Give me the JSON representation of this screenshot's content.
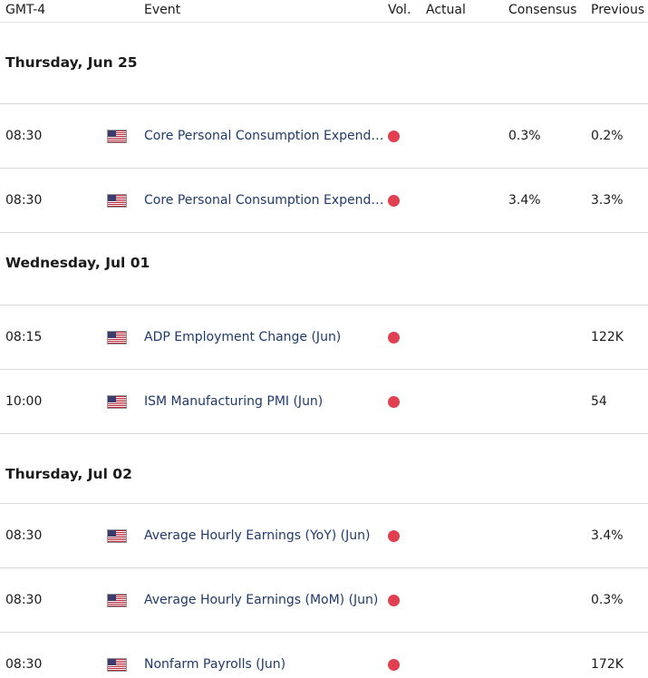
{
  "header": {
    "timezone": "GMT-4",
    "event": "Event",
    "vol": "Vol.",
    "actual": "Actual",
    "consensus": "Consensus",
    "previous": "Previous"
  },
  "colors": {
    "event_text": "#1f3a6b",
    "volatility_high": "#e0404f",
    "divider": "#d9d9d9"
  },
  "days": [
    {
      "label": "Thursday, Jun 25",
      "events": [
        {
          "time": "08:30",
          "flag": "us-flag-icon",
          "name": "Core Personal Consumption Expenditures",
          "volatility": "high",
          "actual": "",
          "consensus": "0.3%",
          "previous": "0.2%"
        },
        {
          "time": "08:30",
          "flag": "us-flag-icon",
          "name": "Core Personal Consumption Expenditures",
          "volatility": "high",
          "actual": "",
          "consensus": "3.4%",
          "previous": "3.3%"
        }
      ]
    },
    {
      "label": "Wednesday, Jul 01",
      "events": [
        {
          "time": "08:15",
          "flag": "us-flag-icon",
          "name": "ADP Employment Change (Jun)",
          "volatility": "high",
          "actual": "",
          "consensus": "",
          "previous": "122K"
        },
        {
          "time": "10:00",
          "flag": "us-flag-icon",
          "name": "ISM Manufacturing PMI (Jun)",
          "volatility": "high",
          "actual": "",
          "consensus": "",
          "previous": "54"
        }
      ]
    },
    {
      "label": "Thursday, Jul 02",
      "events": [
        {
          "time": "08:30",
          "flag": "us-flag-icon",
          "name": "Average Hourly Earnings (YoY) (Jun)",
          "volatility": "high",
          "actual": "",
          "consensus": "",
          "previous": "3.4%"
        },
        {
          "time": "08:30",
          "flag": "us-flag-icon",
          "name": "Average Hourly Earnings (MoM) (Jun)",
          "volatility": "high",
          "actual": "",
          "consensus": "",
          "previous": "0.3%"
        },
        {
          "time": "08:30",
          "flag": "us-flag-icon",
          "name": "Nonfarm Payrolls (Jun)",
          "volatility": "high",
          "actual": "",
          "consensus": "",
          "previous": "172K"
        }
      ]
    }
  ]
}
